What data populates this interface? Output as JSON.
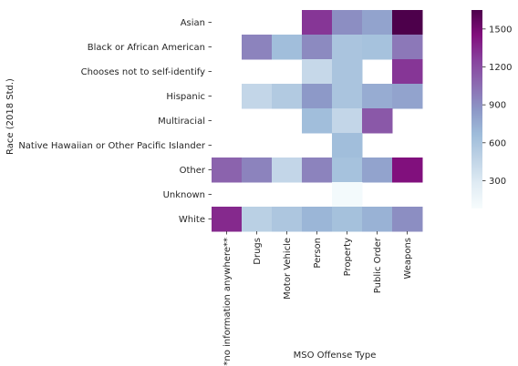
{
  "chart_data": {
    "type": "heatmap",
    "title": "",
    "xlabel": "MSO Offense Type",
    "ylabel": "Race (2018 Std.)",
    "x": [
      "**no information anywhere**",
      "Drugs",
      "Motor Vehicle",
      "Person",
      "Property",
      "Public Order",
      "Weapons"
    ],
    "y": [
      "Asian",
      "Black or African American",
      "Chooses not to self-identify",
      "Hispanic",
      "Multiracial",
      "Native Hawaiian or Other Pacific Islander",
      "Other",
      "Unknown",
      "White"
    ],
    "values": [
      [
        null,
        null,
        null,
        1300,
        900,
        800,
        1650
      ],
      [
        null,
        950,
        650,
        920,
        600,
        620,
        1000
      ],
      [
        null,
        null,
        null,
        430,
        600,
        null,
        1300
      ],
      [
        null,
        450,
        550,
        850,
        600,
        750,
        800
      ],
      [
        null,
        null,
        null,
        650,
        450,
        1150,
        null
      ],
      [
        null,
        null,
        null,
        null,
        650,
        null,
        null
      ],
      [
        1100,
        950,
        450,
        950,
        620,
        800,
        1450
      ],
      [
        null,
        null,
        null,
        null,
        110,
        null,
        null
      ],
      [
        1350,
        500,
        580,
        700,
        630,
        720,
        900
      ]
    ],
    "colorbar": {
      "min": 80,
      "max": 1650,
      "ticks": [
        300,
        600,
        900,
        1200,
        1500
      ],
      "colormap": "BuPu",
      "colors": [
        "#f7fcfd",
        "#e0ecf4",
        "#bfd3e6",
        "#9ebcda",
        "#8c96c6",
        "#8c6bb1",
        "#88419d",
        "#810f7c",
        "#4d004b"
      ]
    },
    "grid": false
  }
}
